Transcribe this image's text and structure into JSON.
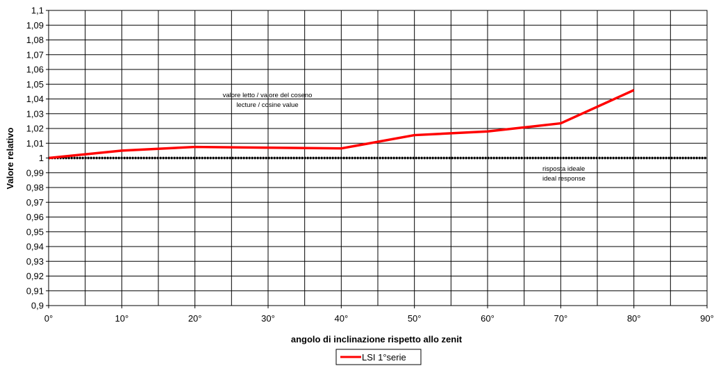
{
  "chart_data": {
    "type": "line",
    "title": "",
    "xlabel": "angolo di inclinazione rispetto allo zenit",
    "ylabel": "Valore relativo",
    "x_tick_labels": [
      "0°",
      "10°",
      "20°",
      "30°",
      "40°",
      "50°",
      "60°",
      "70°",
      "80°",
      "90°"
    ],
    "y_tick_labels": [
      "0,9",
      "0,91",
      "0,92",
      "0,93",
      "0,94",
      "0,95",
      "0,96",
      "0,97",
      "0,98",
      "0,99",
      "1",
      "1,01",
      "1,02",
      "1,03",
      "1,04",
      "1,05",
      "1,06",
      "1,07",
      "1,08",
      "1,09",
      "1,1"
    ],
    "xlim": [
      0,
      90
    ],
    "ylim": [
      0.9,
      1.1
    ],
    "x_major_step": 10,
    "x_grid_step": 5,
    "y_step": 0.01,
    "grid": true,
    "legend_position": "bottom-center",
    "series": [
      {
        "name": "LSI 1°serie",
        "color": "#ff0000",
        "x": [
          0,
          10,
          20,
          30,
          40,
          50,
          60,
          70,
          80
        ],
        "y": [
          1.0,
          1.005,
          1.0075,
          1.007,
          1.0065,
          1.0155,
          1.018,
          1.0235,
          1.046
        ]
      },
      {
        "name": "",
        "color": "#000000",
        "style": "dotted",
        "x": [
          0,
          90
        ],
        "y": [
          1.0,
          1.0
        ]
      }
    ],
    "annotations": {
      "measured_line1": "valore  letto  / valore del coseno",
      "measured_line2": "lecture / cosine value",
      "ideal_line1": "risposta ideale",
      "ideal_line2": "ideal response"
    }
  }
}
